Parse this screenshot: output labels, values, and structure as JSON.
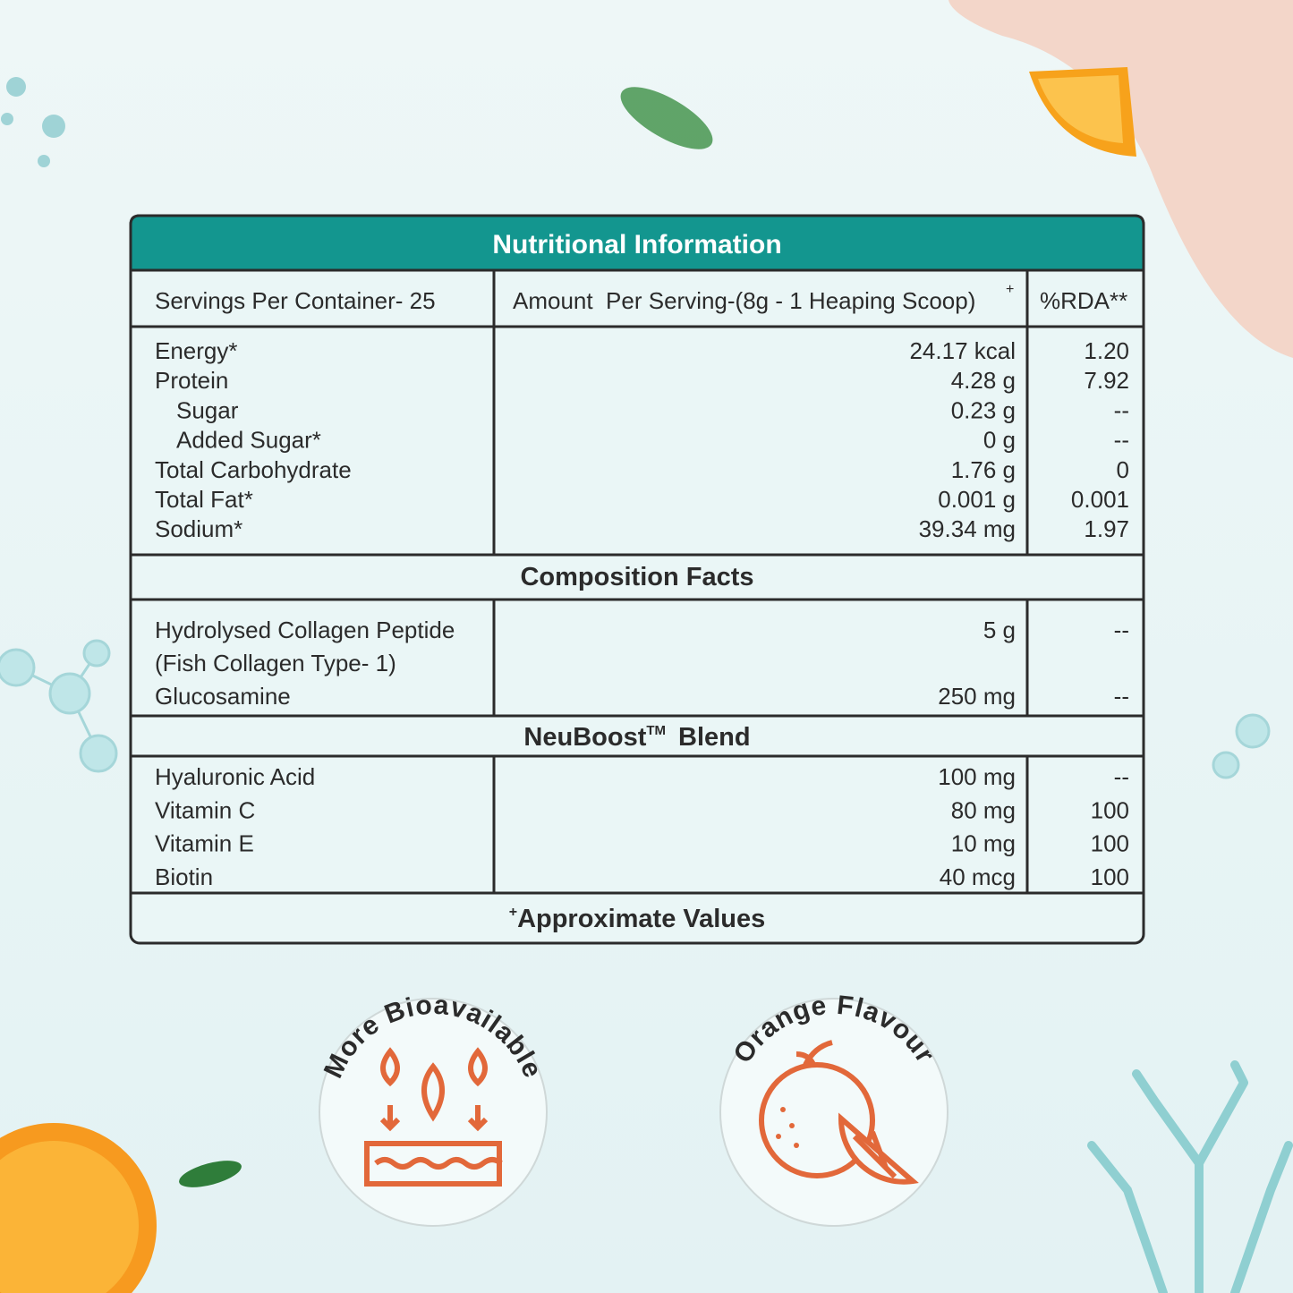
{
  "title": "Nutritional Information",
  "header": {
    "servings": "Servings Per Container- 25",
    "amount": "Amount  Per Serving-(8g - 1 Heaping Scoop)",
    "amount_mark": "+",
    "rda": "%RDA**"
  },
  "nutrition": [
    {
      "name": "Energy*",
      "amount": "24.17 kcal",
      "rda": "1.20"
    },
    {
      "name": "Protein",
      "amount": "4.28 g",
      "rda": "7.92"
    },
    {
      "name": "Sugar",
      "amount": "0.23 g",
      "rda": "--"
    },
    {
      "name": "Added Sugar*",
      "amount": "0 g",
      "rda": "--"
    },
    {
      "name": "Total Carbohydrate",
      "amount": "1.76 g",
      "rda": "0"
    },
    {
      "name": "Total Fat*",
      "amount": "0.001 g",
      "rda": "0.001"
    },
    {
      "name": "Sodium*",
      "amount": "39.34 mg",
      "rda": "1.97"
    }
  ],
  "composition": {
    "title": "Composition Facts",
    "rows": [
      {
        "name": [
          "Hydrolysed Collagen Peptide",
          "(Fish Collagen Type- 1)"
        ],
        "amount": "5 g",
        "rda": "--"
      },
      {
        "name": [
          "Glucosamine"
        ],
        "amount": "250 mg",
        "rda": "--"
      }
    ]
  },
  "blend": {
    "title": "NeuBoost",
    "mark": "TM",
    "suffix": "Blend",
    "rows": [
      {
        "name": "Hyaluronic Acid",
        "amount": "100 mg",
        "rda": "--"
      },
      {
        "name": "Vitamin C",
        "amount": "80 mg",
        "rda": "100"
      },
      {
        "name": "Vitamin E",
        "amount": "10 mg",
        "rda": "100"
      },
      {
        "name": "Biotin",
        "amount": "40 mcg",
        "rda": "100"
      }
    ]
  },
  "footer": {
    "mark": "+",
    "text": "Approximate Values"
  },
  "badges": [
    {
      "label": "More Bioavailable"
    },
    {
      "label": "Orange Flavour"
    }
  ]
}
